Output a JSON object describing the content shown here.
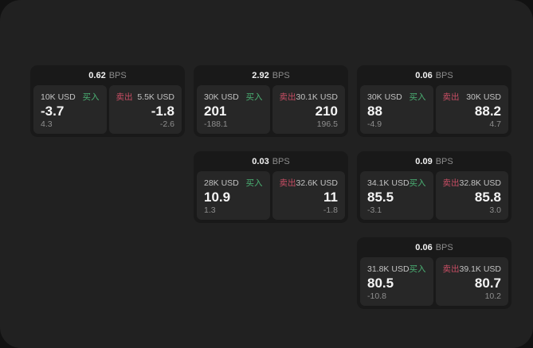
{
  "labels": {
    "bps_unit": "BPS",
    "buy": "买入",
    "sell": "卖出"
  },
  "colors": {
    "buy_green": "#4bb274",
    "sell_red": "#c84e64",
    "panel_bg": "#212121",
    "card_bg": "#191919",
    "tile_bg": "#272727"
  },
  "cards": [
    {
      "col": 1,
      "bps_value": "0.62",
      "buy": {
        "amount": "10K USD",
        "price": "-3.7",
        "change": "4.3"
      },
      "sell": {
        "amount": "5.5K USD",
        "price": "-1.8",
        "change": "-2.6"
      }
    },
    {
      "col": 2,
      "bps_value": "2.92",
      "buy": {
        "amount": "30K USD",
        "price": "201",
        "change": "-188.1"
      },
      "sell": {
        "amount": "30.1K USD",
        "price": "210",
        "change": "196.5"
      }
    },
    {
      "col": 2,
      "bps_value": "0.03",
      "buy": {
        "amount": "28K USD",
        "price": "10.9",
        "change": "1.3"
      },
      "sell": {
        "amount": "32.6K USD",
        "price": "11",
        "change": "-1.8"
      }
    },
    {
      "col": 3,
      "bps_value": "0.06",
      "buy": {
        "amount": "30K USD",
        "price": "88",
        "change": "-4.9"
      },
      "sell": {
        "amount": "30K USD",
        "price": "88.2",
        "change": "4.7"
      }
    },
    {
      "col": 3,
      "bps_value": "0.09",
      "buy": {
        "amount": "34.1K USD",
        "price": "85.5",
        "change": "-3.1"
      },
      "sell": {
        "amount": "32.8K USD",
        "price": "85.8",
        "change": "3.0"
      }
    },
    {
      "col": 3,
      "bps_value": "0.06",
      "buy": {
        "amount": "31.8K USD",
        "price": "80.5",
        "change": "-10.8"
      },
      "sell": {
        "amount": "39.1K USD",
        "price": "80.7",
        "change": "10.2"
      }
    }
  ]
}
